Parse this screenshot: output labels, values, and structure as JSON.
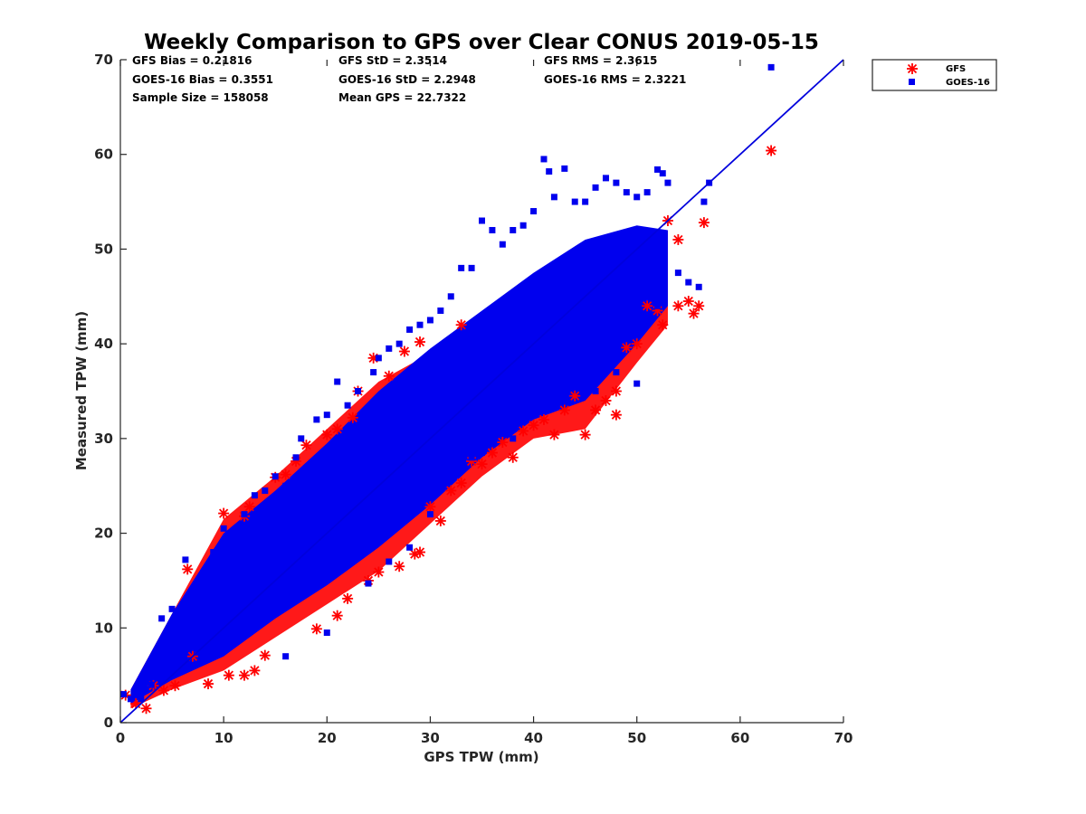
{
  "chart_data": {
    "type": "scatter",
    "title": "Weekly Comparison to GPS over Clear CONUS 2019-05-15",
    "xlabel": "GPS TPW (mm)",
    "ylabel": "Measured TPW (mm)",
    "xlim": [
      0,
      70
    ],
    "ylim": [
      0,
      70
    ],
    "xticks": [
      "0",
      "10",
      "20",
      "30",
      "40",
      "50",
      "60",
      "70"
    ],
    "yticks": [
      "0",
      "10",
      "20",
      "30",
      "40",
      "50",
      "60",
      "70"
    ],
    "grid": false,
    "legend_position": "outside-top-right",
    "stats": [
      "GFS Bias = 0.21816",
      "GFS StD = 2.3514",
      "GFS RMS = 2.3615",
      "GOES-16 Bias = 0.3551",
      "GOES-16 StD = 2.2948",
      "GOES-16 RMS = 2.3221",
      "Sample Size = 158058",
      "Mean GPS = 22.7322"
    ],
    "reference_line": {
      "x": [
        0,
        70
      ],
      "y": [
        0,
        70
      ],
      "color": "#0000dd"
    },
    "series": [
      {
        "name": "GFS",
        "marker": "asterisk",
        "color": "#ff0000",
        "points": [
          [
            0.5,
            2.9
          ],
          [
            1.5,
            2.0
          ],
          [
            2.5,
            1.5
          ],
          [
            3.2,
            3.9
          ],
          [
            4.2,
            3.4
          ],
          [
            5.3,
            3.9
          ],
          [
            6.5,
            16.2
          ],
          [
            7.0,
            7.0
          ],
          [
            8.5,
            4.1
          ],
          [
            10.0,
            22.1
          ],
          [
            10.5,
            5.0
          ],
          [
            12.0,
            21.8
          ],
          [
            12.0,
            5.0
          ],
          [
            12.5,
            22.8
          ],
          [
            13.0,
            5.5
          ],
          [
            14.0,
            7.1
          ],
          [
            15.0,
            25.9
          ],
          [
            16.0,
            26.2
          ],
          [
            17.0,
            27.6
          ],
          [
            18.0,
            29.3
          ],
          [
            19.0,
            9.9
          ],
          [
            20.0,
            30.4
          ],
          [
            21.0,
            11.3
          ],
          [
            21.0,
            31.0
          ],
          [
            22.0,
            13.1
          ],
          [
            22.5,
            32.2
          ],
          [
            23.0,
            35.0
          ],
          [
            24.0,
            15.0
          ],
          [
            24.5,
            38.5
          ],
          [
            25.0,
            15.9
          ],
          [
            26.0,
            36.6
          ],
          [
            27.0,
            16.5
          ],
          [
            27.5,
            39.2
          ],
          [
            28.5,
            17.8
          ],
          [
            29.0,
            18.0
          ],
          [
            29.0,
            40.2
          ],
          [
            30.0,
            22.8
          ],
          [
            31.0,
            21.3
          ],
          [
            32.0,
            24.5
          ],
          [
            33.0,
            42.0
          ],
          [
            33.0,
            25.3
          ],
          [
            34.0,
            27.6
          ],
          [
            35.0,
            27.3
          ],
          [
            36.0,
            28.5
          ],
          [
            37.0,
            29.6
          ],
          [
            38.0,
            28.0
          ],
          [
            39.0,
            30.8
          ],
          [
            40.0,
            31.4
          ],
          [
            41.0,
            32.0
          ],
          [
            42.0,
            30.4
          ],
          [
            43.0,
            33.0
          ],
          [
            44.0,
            34.5
          ],
          [
            45.0,
            30.4
          ],
          [
            46.0,
            33.0
          ],
          [
            47.0,
            34.0
          ],
          [
            48.0,
            32.5
          ],
          [
            48.0,
            35.0
          ],
          [
            49.0,
            39.6
          ],
          [
            50.0,
            40.0
          ],
          [
            51.0,
            44.0
          ],
          [
            52.0,
            43.5
          ],
          [
            52.5,
            42.0
          ],
          [
            53.0,
            53.0
          ],
          [
            54.0,
            51.0
          ],
          [
            54.0,
            44.0
          ],
          [
            55.0,
            44.5
          ],
          [
            55.5,
            43.2
          ],
          [
            56.0,
            44.0
          ],
          [
            56.5,
            52.8
          ],
          [
            63.0,
            60.4
          ]
        ]
      },
      {
        "name": "GOES-16",
        "marker": "square",
        "color": "#0000ee",
        "points": [
          [
            0.3,
            3.0
          ],
          [
            1.0,
            2.5
          ],
          [
            2.0,
            2.5
          ],
          [
            3.0,
            4.0
          ],
          [
            4.0,
            11.0
          ],
          [
            5.0,
            12.0
          ],
          [
            6.3,
            17.2
          ],
          [
            7.0,
            13.0
          ],
          [
            8.0,
            15.5
          ],
          [
            9.0,
            18.0
          ],
          [
            10.0,
            20.5
          ],
          [
            11.0,
            19.0
          ],
          [
            12.0,
            22.0
          ],
          [
            13.0,
            24.0
          ],
          [
            14.0,
            24.5
          ],
          [
            15.0,
            26.0
          ],
          [
            16.0,
            25.0
          ],
          [
            17.0,
            28.0
          ],
          [
            17.5,
            30.0
          ],
          [
            19.0,
            32.0
          ],
          [
            20.0,
            32.5
          ],
          [
            21.0,
            36.0
          ],
          [
            22.0,
            33.5
          ],
          [
            23.0,
            35.0
          ],
          [
            24.5,
            37.0
          ],
          [
            25.0,
            38.5
          ],
          [
            26.0,
            39.5
          ],
          [
            27.0,
            40.0
          ],
          [
            28.0,
            41.5
          ],
          [
            29.0,
            42.0
          ],
          [
            30.0,
            42.5
          ],
          [
            31.0,
            43.5
          ],
          [
            32.0,
            45.0
          ],
          [
            33.0,
            48.0
          ],
          [
            34.0,
            48.0
          ],
          [
            35.0,
            53.0
          ],
          [
            36.0,
            52.0
          ],
          [
            37.0,
            50.5
          ],
          [
            38.0,
            52.0
          ],
          [
            39.0,
            52.5
          ],
          [
            40.0,
            54.0
          ],
          [
            41.0,
            59.5
          ],
          [
            41.5,
            58.2
          ],
          [
            42.0,
            55.5
          ],
          [
            43.0,
            58.5
          ],
          [
            44.0,
            55.0
          ],
          [
            45.0,
            55.0
          ],
          [
            46.0,
            56.5
          ],
          [
            47.0,
            57.5
          ],
          [
            48.0,
            57.0
          ],
          [
            49.0,
            56.0
          ],
          [
            50.0,
            55.5
          ],
          [
            51.0,
            56.0
          ],
          [
            52.0,
            58.4
          ],
          [
            52.5,
            58.0
          ],
          [
            53.0,
            57.0
          ],
          [
            54.0,
            47.5
          ],
          [
            55.0,
            46.5
          ],
          [
            56.0,
            46.0
          ],
          [
            56.5,
            55.0
          ],
          [
            57.0,
            57.0
          ],
          [
            63.0,
            69.2
          ],
          [
            16.0,
            7.0
          ],
          [
            20.0,
            9.5
          ],
          [
            24.0,
            14.7
          ],
          [
            26.0,
            17.0
          ],
          [
            28.0,
            18.5
          ],
          [
            30.0,
            22.0
          ],
          [
            32.0,
            26.0
          ],
          [
            34.0,
            28.0
          ],
          [
            35.0,
            28.5
          ],
          [
            38.0,
            30.0
          ],
          [
            40.0,
            32.5
          ],
          [
            42.0,
            33.5
          ],
          [
            44.0,
            36.0
          ],
          [
            46.0,
            35.0
          ],
          [
            48.0,
            37.0
          ],
          [
            50.0,
            35.8
          ],
          [
            52.0,
            44.0
          ]
        ]
      }
    ]
  }
}
